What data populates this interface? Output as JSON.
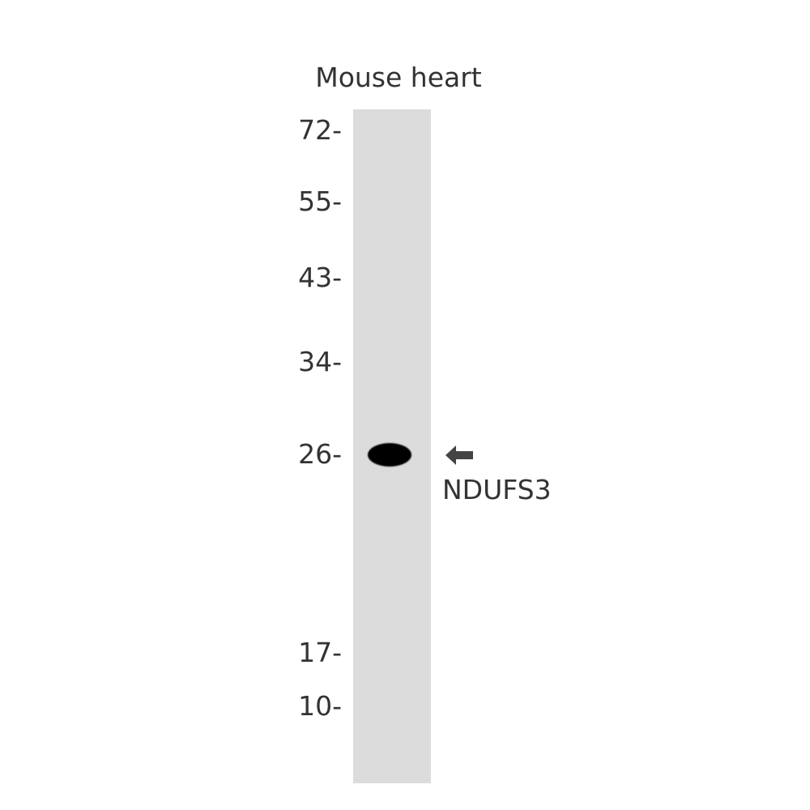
{
  "sample_label": "Mouse heart",
  "markers": [
    "72-",
    "55-",
    "43-",
    "34-",
    "26-",
    "17-",
    "10-"
  ],
  "target_label": "NDUFS3",
  "arrow_icon": "left-arrow-icon",
  "colors": {
    "lane": "#dcdcdc",
    "band": "#000000",
    "arrow": "#444444",
    "text": "#333333"
  }
}
